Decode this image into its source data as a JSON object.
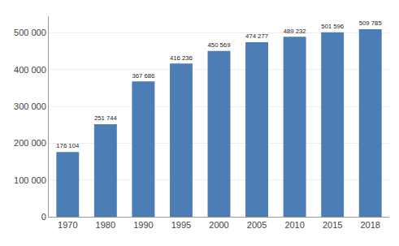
{
  "chart_data": {
    "type": "bar",
    "categories": [
      "1970",
      "1980",
      "1990",
      "1995",
      "2000",
      "2005",
      "2010",
      "2015",
      "2018"
    ],
    "values": [
      176104,
      251744,
      367686,
      416236,
      450569,
      474277,
      489232,
      501596,
      509785
    ],
    "value_labels": [
      "176 104",
      "251 744",
      "367 686",
      "416 236",
      "450 569",
      "474 277",
      "489 232",
      "501 596",
      "509 785"
    ],
    "data_labels": true,
    "color": "#4d7db5",
    "ylim": [
      0,
      545000
    ],
    "yticks": [
      0,
      {
        "value": 100000,
        "label": "100 000"
      },
      {
        "value": 200000,
        "label": "200 000"
      },
      {
        "value": 300000,
        "label": "300 000"
      },
      {
        "value": 400000,
        "label": "400 000"
      },
      {
        "value": 500000,
        "label": "500 000"
      }
    ],
    "grid": true
  }
}
